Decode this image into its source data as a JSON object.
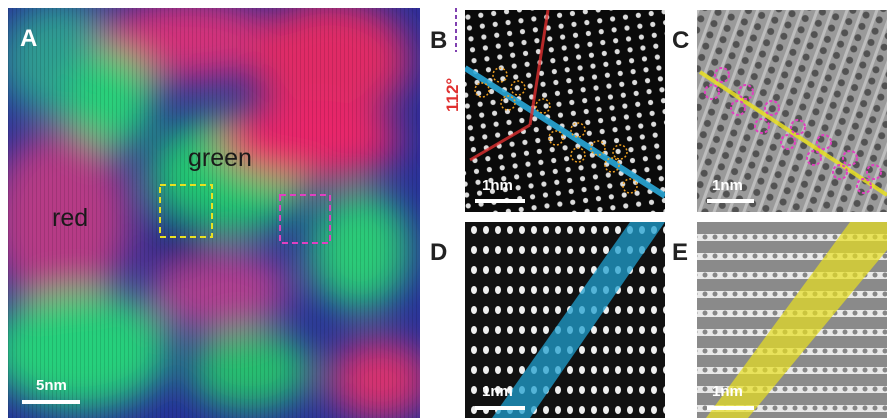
{
  "panels": [
    {
      "label": "A",
      "annotations": [
        "green",
        "red"
      ],
      "scale_bar": "5nm"
    },
    {
      "label": "B",
      "angle": "112°",
      "scale_bar": "1nm"
    },
    {
      "label": "C",
      "scale_bar": "1nm"
    },
    {
      "label": "D",
      "scale_bar": "1nm"
    },
    {
      "label": "E",
      "scale_bar": "1nm"
    }
  ]
}
